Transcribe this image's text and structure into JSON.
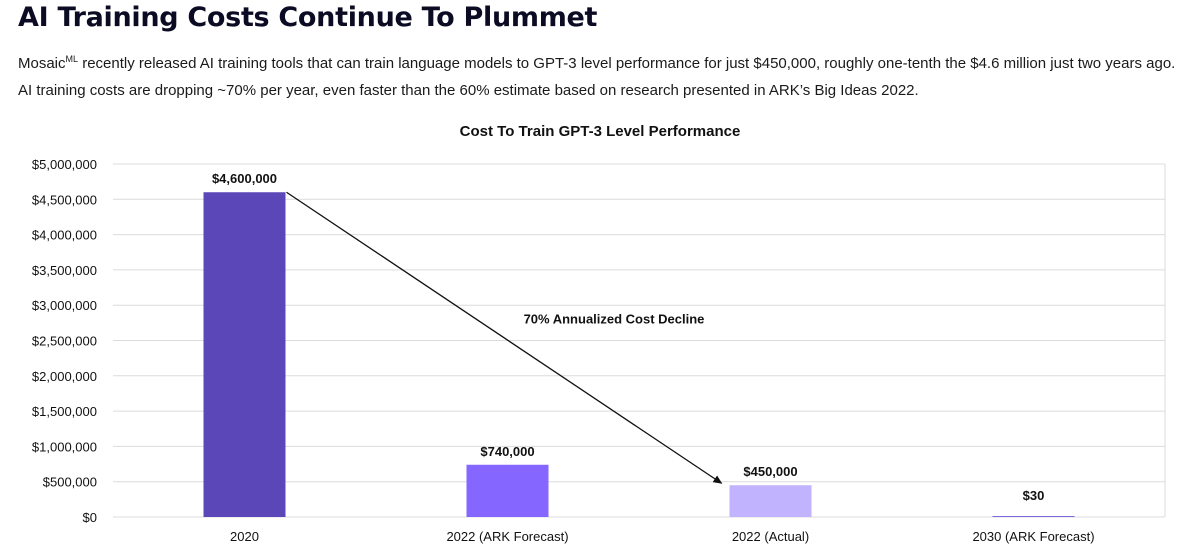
{
  "header": {
    "title": "AI Training Costs Continue To Plummet",
    "body_prefix": "Mosaic",
    "body_superscript": "ML",
    "body_rest": " recently released AI training tools that can train language models to GPT-3 level performance for just $450,000, roughly one-tenth the $4.6 million just two years ago. AI training costs are dropping ~70% per year, even faster than the 60% estimate based on research presented in ARK’s Big Ideas 2022."
  },
  "chart_data": {
    "type": "bar",
    "title": "Cost To Train GPT-3 Level Performance",
    "xlabel": "",
    "ylabel": "",
    "categories": [
      "2020",
      "2022 (ARK Forecast)",
      "2022 (Actual)",
      "2030 (ARK Forecast)"
    ],
    "values": [
      4600000,
      740000,
      450000,
      30
    ],
    "data_labels": [
      "$4,600,000",
      "$740,000",
      "$450,000",
      "$30"
    ],
    "bar_colors": [
      "#5b47b8",
      "#8566ff",
      "#c2b3ff",
      "#7a6ae0"
    ],
    "ylim": [
      0,
      5000000
    ],
    "yticks": [
      0,
      500000,
      1000000,
      1500000,
      2000000,
      2500000,
      3000000,
      3500000,
      4000000,
      4500000,
      5000000
    ],
    "ytick_labels": [
      "$0",
      "$500,000",
      "$1,000,000",
      "$1,500,000",
      "$2,000,000",
      "$2,500,000",
      "$3,000,000",
      "$3,500,000",
      "$4,000,000",
      "$4,500,000",
      "$5,000,000"
    ],
    "grid": true,
    "annotation": {
      "text": "70% Annualized Cost Decline",
      "from_category": 0,
      "to_category": 2
    }
  }
}
